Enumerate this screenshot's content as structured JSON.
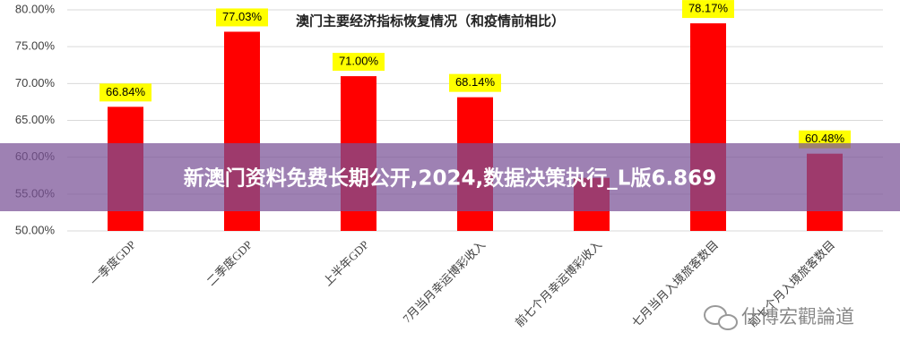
{
  "chart_data": {
    "type": "bar",
    "title": "澳门主要经济指标恢复情况（和疫情前相比）",
    "categories": [
      "一季度GDP",
      "二季度GDP",
      "上半年GDP",
      "7月当月幸运博彩收入",
      "前七个月幸运博彩收入",
      "七月当月入境旅客数目",
      "前七个月入境旅客数目"
    ],
    "values": [
      66.84,
      77.03,
      71.0,
      68.14,
      57.2,
      78.17,
      60.48
    ],
    "value_labels": [
      "66.84%",
      "77.03%",
      "71.00%",
      "68.14%",
      null,
      "78.17%",
      "60.48%"
    ],
    "color": "#ff0000",
    "ylim": [
      50,
      80
    ],
    "yticks": [
      {
        "value": 50,
        "label": "50.00%"
      },
      {
        "value": 55,
        "label": "55.00%"
      },
      {
        "value": 60,
        "label": "60.00%"
      },
      {
        "value": 65,
        "label": "65.00%"
      },
      {
        "value": 70,
        "label": "70.00%"
      },
      {
        "value": 75,
        "label": "75.00%"
      },
      {
        "value": 80,
        "label": "80.00%"
      }
    ],
    "grid": true
  },
  "overlay_banner": "新澳门资料免费长期公开,2024,数据决策执行_L版6.869",
  "watermark": "仕博宏觀論道"
}
